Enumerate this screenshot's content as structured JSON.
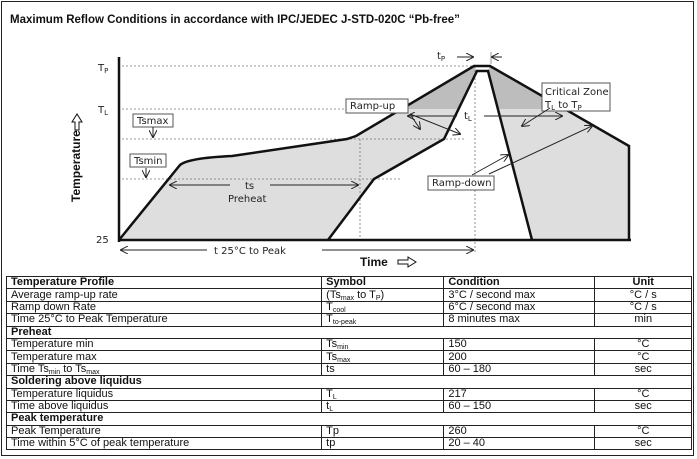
{
  "title": "Maximum Reflow Conditions in accordance with IPC/JEDEC J-STD-020C “Pb-free”",
  "diagram": {
    "y_axis_label": "Temperature",
    "x_axis_label": "Time",
    "tp_level": {
      "main": "T",
      "sub": "P"
    },
    "tl_level": {
      "main": "T",
      "sub": "L"
    },
    "baseline": "25",
    "tsmax": "Tsmax",
    "tsmin": "Tsmin",
    "ts": "ts",
    "preheat": "Preheat",
    "t_to_peak": "t  25°C to Peak",
    "tp_time": {
      "main": "t",
      "sub": "P"
    },
    "tl_time": {
      "main": "t",
      "sub": "L"
    },
    "ramp_up": "Ramp-up",
    "ramp_down": "Ramp-down",
    "critical_zone": "Critical Zone",
    "critical_range": {
      "a": "T",
      "a_sub": "L",
      "mid": " to ",
      "b": "T",
      "b_sub": "P"
    },
    "colors": {
      "fill": "#dedede",
      "critical": "#bdbdbd",
      "line": "#111111"
    }
  },
  "table": {
    "headers": [
      "Temperature Profile",
      "Symbol",
      "Condition",
      "Unit"
    ],
    "rows": [
      {
        "type": "data",
        "cells": [
          "Average ramp-up rate",
          [
            {
              "t": "(Ts"
            },
            {
              "t": "max",
              "sub": true
            },
            {
              "t": " to T"
            },
            {
              "t": "P",
              "sub": true
            },
            {
              "t": ")"
            }
          ],
          "3°C / second max",
          "°C / s"
        ]
      },
      {
        "type": "data",
        "cells": [
          "Ramp down Rate",
          [
            {
              "t": "T"
            },
            {
              "t": "cool",
              "sub": true
            }
          ],
          "6°C / second max",
          "°C / s"
        ]
      },
      {
        "type": "data",
        "cells": [
          "Time 25°C to Peak Temperature",
          [
            {
              "t": "T"
            },
            {
              "t": "to-peak",
              "sub": true
            }
          ],
          "8 minutes max",
          "min"
        ]
      },
      {
        "type": "section",
        "label": "Preheat"
      },
      {
        "type": "data",
        "cells": [
          "Temperature min",
          [
            {
              "t": "Ts"
            },
            {
              "t": "min",
              "sub": true
            }
          ],
          "150",
          "°C"
        ]
      },
      {
        "type": "data",
        "cells": [
          "Temperature max",
          [
            {
              "t": "Ts"
            },
            {
              "t": "max",
              "sub": true
            }
          ],
          "200",
          "°C"
        ]
      },
      {
        "type": "data",
        "cells": [
          [
            {
              "t": "Time Ts"
            },
            {
              "t": "min",
              "sub": true
            },
            {
              "t": " to Ts"
            },
            {
              "t": "max",
              "sub": true
            }
          ],
          "ts",
          "60 – 180",
          "sec"
        ]
      },
      {
        "type": "section",
        "label": "Soldering above liquidus"
      },
      {
        "type": "data",
        "cells": [
          "Temperature liquidus",
          [
            {
              "t": "T"
            },
            {
              "t": "L",
              "sub": true
            }
          ],
          "217",
          "°C"
        ]
      },
      {
        "type": "data",
        "cells": [
          "Time above liquidus",
          [
            {
              "t": "t"
            },
            {
              "t": "L",
              "sub": true
            }
          ],
          "60 – 150",
          "sec"
        ]
      },
      {
        "type": "section",
        "label": "Peak temperature"
      },
      {
        "type": "data",
        "cells": [
          "Peak Temperature",
          "Tp",
          "260",
          "°C"
        ]
      },
      {
        "type": "data",
        "cells": [
          "Time within 5°C of peak temperature",
          "tp",
          "20 – 40",
          "sec"
        ]
      }
    ]
  }
}
